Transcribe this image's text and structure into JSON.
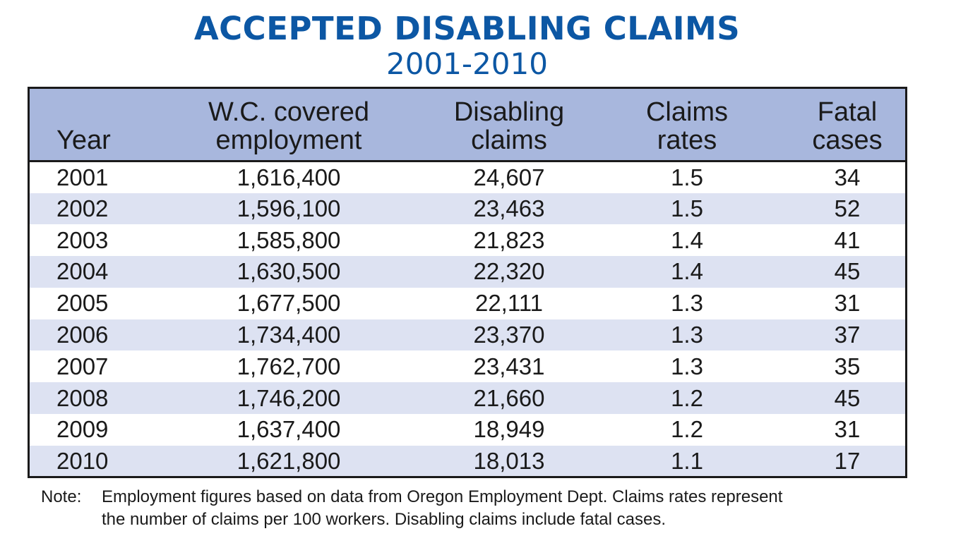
{
  "title": "ACCEPTED DISABLING CLAIMS",
  "subtitle": "2001-2010",
  "colors": {
    "title": "#0c57a4",
    "header_bg": "#a8b7dd",
    "stripe_bg": "#dde2f2",
    "border": "#1a1a1a"
  },
  "chart_data": {
    "type": "table",
    "title": "ACCEPTED DISABLING CLAIMS",
    "subtitle": "2001-2010",
    "columns": [
      {
        "line1": "",
        "line2": "Year"
      },
      {
        "line1": "W.C. covered",
        "line2": "employment"
      },
      {
        "line1": "Disabling",
        "line2": "claims"
      },
      {
        "line1": "Claims",
        "line2": "rates"
      },
      {
        "line1": "Fatal",
        "line2": "cases"
      }
    ],
    "rows": [
      [
        "2001",
        "1,616,400",
        "24,607",
        "1.5",
        "34"
      ],
      [
        "2002",
        "1,596,100",
        "23,463",
        "1.5",
        "52"
      ],
      [
        "2003",
        "1,585,800",
        "21,823",
        "1.4",
        "41"
      ],
      [
        "2004",
        "1,630,500",
        "22,320",
        "1.4",
        "45"
      ],
      [
        "2005",
        "1,677,500",
        "22,111",
        "1.3",
        "31"
      ],
      [
        "2006",
        "1,734,400",
        "23,370",
        "1.3",
        "37"
      ],
      [
        "2007",
        "1,762,700",
        "23,431",
        "1.3",
        "35"
      ],
      [
        "2008",
        "1,746,200",
        "21,660",
        "1.2",
        "45"
      ],
      [
        "2009",
        "1,637,400",
        "18,949",
        "1.2",
        "31"
      ],
      [
        "2010",
        "1,621,800",
        "18,013",
        "1.1",
        "17"
      ]
    ]
  },
  "note": {
    "label": "Note:",
    "line1": "Employment figures based on data from Oregon Employment Dept. Claims rates represent",
    "line2": "the number of claims per 100 workers. Disabling claims include fatal cases."
  }
}
